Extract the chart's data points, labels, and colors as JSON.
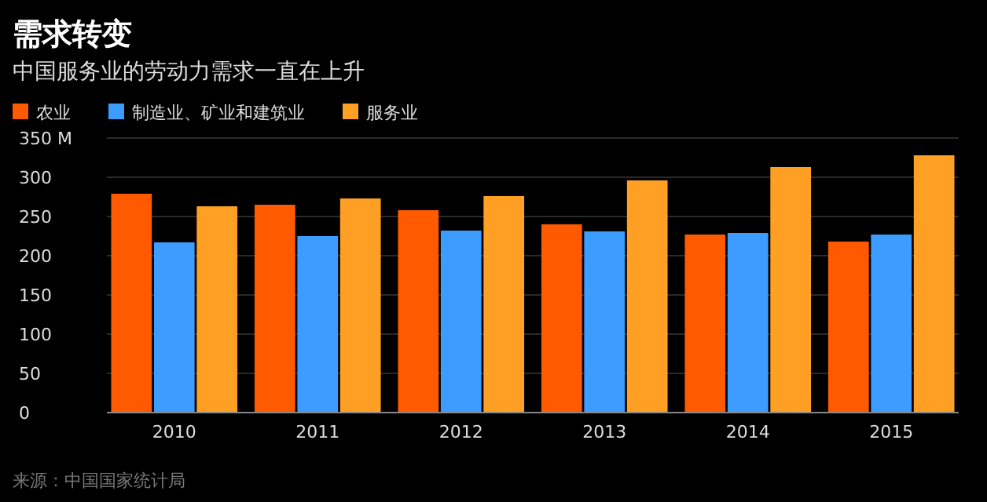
{
  "chart_data": {
    "type": "bar",
    "title": "需求转变",
    "subtitle": "中国服务业的劳动力需求一直在上升",
    "categories": [
      "2010",
      "2011",
      "2012",
      "2013",
      "2014",
      "2015"
    ],
    "series": [
      {
        "name": "农业",
        "color": "#ff5a00",
        "values": [
          279,
          265,
          258,
          240,
          227,
          218
        ]
      },
      {
        "name": "制造业、矿业和建筑业",
        "color": "#3d9cff",
        "values": [
          217,
          225,
          232,
          231,
          229,
          227
        ]
      },
      {
        "name": "服务业",
        "color": "#ffa024",
        "values": [
          263,
          273,
          276,
          296,
          313,
          328
        ]
      }
    ],
    "ylim": [
      0,
      350
    ],
    "yticks": [
      0,
      50,
      100,
      150,
      200,
      250,
      300,
      {
        "value": 350,
        "label": "350 M"
      }
    ],
    "grid": "y",
    "legend": "top left",
    "annotations": [
      "来源：中国国家统计局"
    ]
  }
}
